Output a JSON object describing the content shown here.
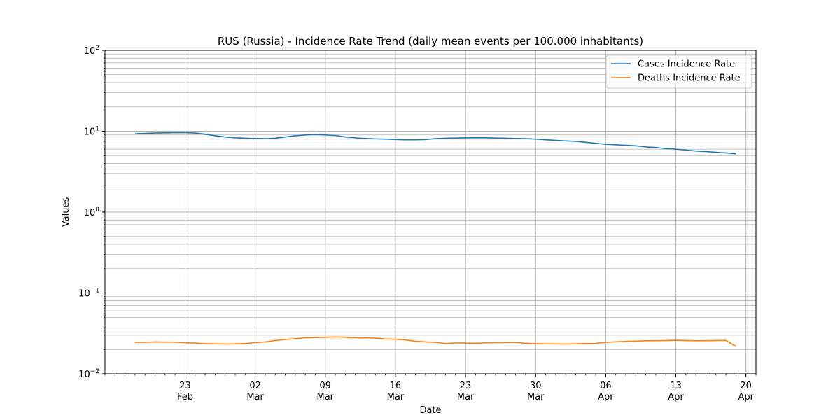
{
  "chart_data": {
    "type": "line",
    "title": "RUS (Russia) - Incidence Rate Trend (daily mean events per 100.000 inhabitants)",
    "xlabel": "Date",
    "ylabel": "Values",
    "yscale": "log",
    "ylim": [
      0.01,
      100
    ],
    "xlim": [
      "2021-02-15",
      "2021-04-21"
    ],
    "grid": true,
    "legend_position": "top-right",
    "y_ticks": [
      {
        "base": "10",
        "exp": "−2"
      },
      {
        "base": "10",
        "exp": "−1"
      },
      {
        "base": "10",
        "exp": "0"
      },
      {
        "base": "10",
        "exp": "1"
      },
      {
        "base": "10",
        "exp": "2"
      }
    ],
    "x_ticks": [
      {
        "date": "2021-02-23",
        "day": "23",
        "month": "Feb"
      },
      {
        "date": "2021-03-02",
        "day": "02",
        "month": "Mar"
      },
      {
        "date": "2021-03-09",
        "day": "09",
        "month": "Mar"
      },
      {
        "date": "2021-03-16",
        "day": "16",
        "month": "Mar"
      },
      {
        "date": "2021-03-23",
        "day": "23",
        "month": "Mar"
      },
      {
        "date": "2021-03-30",
        "day": "30",
        "month": "Mar"
      },
      {
        "date": "2021-04-06",
        "day": "06",
        "month": "Apr"
      },
      {
        "date": "2021-04-13",
        "day": "13",
        "month": "Apr"
      },
      {
        "date": "2021-04-20",
        "day": "20",
        "month": "Apr"
      }
    ],
    "x": [
      "2021-02-18",
      "2021-02-19",
      "2021-02-20",
      "2021-02-21",
      "2021-02-22",
      "2021-02-23",
      "2021-02-24",
      "2021-02-25",
      "2021-02-26",
      "2021-02-27",
      "2021-02-28",
      "2021-03-01",
      "2021-03-02",
      "2021-03-03",
      "2021-03-04",
      "2021-03-05",
      "2021-03-06",
      "2021-03-07",
      "2021-03-08",
      "2021-03-09",
      "2021-03-10",
      "2021-03-11",
      "2021-03-12",
      "2021-03-13",
      "2021-03-14",
      "2021-03-15",
      "2021-03-16",
      "2021-03-17",
      "2021-03-18",
      "2021-03-19",
      "2021-03-20",
      "2021-03-21",
      "2021-03-22",
      "2021-03-23",
      "2021-03-24",
      "2021-03-25",
      "2021-03-26",
      "2021-03-27",
      "2021-03-28",
      "2021-03-29",
      "2021-03-30",
      "2021-03-31",
      "2021-04-01",
      "2021-04-02",
      "2021-04-03",
      "2021-04-04",
      "2021-04-05",
      "2021-04-06",
      "2021-04-07",
      "2021-04-08",
      "2021-04-09",
      "2021-04-10",
      "2021-04-11",
      "2021-04-12",
      "2021-04-13",
      "2021-04-14",
      "2021-04-15",
      "2021-04-16",
      "2021-04-17",
      "2021-04-18",
      "2021-04-19"
    ],
    "series": [
      {
        "name": "Cases Incidence Rate",
        "color": "#1f77b4",
        "values": [
          9.3,
          9.4,
          9.5,
          9.55,
          9.6,
          9.6,
          9.5,
          9.2,
          8.8,
          8.5,
          8.3,
          8.2,
          8.15,
          8.1,
          8.2,
          8.5,
          8.8,
          9.0,
          9.1,
          9.0,
          8.85,
          8.5,
          8.3,
          8.15,
          8.05,
          8.0,
          7.9,
          7.85,
          7.85,
          7.9,
          8.1,
          8.2,
          8.25,
          8.3,
          8.3,
          8.3,
          8.25,
          8.2,
          8.15,
          8.1,
          8.0,
          7.85,
          7.7,
          7.6,
          7.5,
          7.3,
          7.1,
          6.9,
          6.8,
          6.7,
          6.6,
          6.4,
          6.3,
          6.1,
          6.0,
          5.85,
          5.7,
          5.6,
          5.5,
          5.4,
          5.25
        ]
      },
      {
        "name": "Deaths Incidence Rate",
        "color": "#ff7f0e",
        "values": [
          0.0245,
          0.0245,
          0.0248,
          0.0247,
          0.0246,
          0.0242,
          0.024,
          0.0236,
          0.0235,
          0.0233,
          0.0235,
          0.0237,
          0.0243,
          0.0248,
          0.0258,
          0.0266,
          0.0272,
          0.0279,
          0.0281,
          0.0283,
          0.0286,
          0.0283,
          0.0279,
          0.0278,
          0.0276,
          0.027,
          0.0268,
          0.0262,
          0.0253,
          0.0248,
          0.0245,
          0.0237,
          0.0241,
          0.024,
          0.0239,
          0.0242,
          0.0243,
          0.0243,
          0.0244,
          0.0239,
          0.0236,
          0.0235,
          0.0234,
          0.0233,
          0.0235,
          0.0237,
          0.0238,
          0.0245,
          0.0249,
          0.0251,
          0.0253,
          0.0256,
          0.0257,
          0.0258,
          0.026,
          0.0258,
          0.0256,
          0.0257,
          0.0258,
          0.0259,
          0.0218
        ]
      }
    ]
  }
}
